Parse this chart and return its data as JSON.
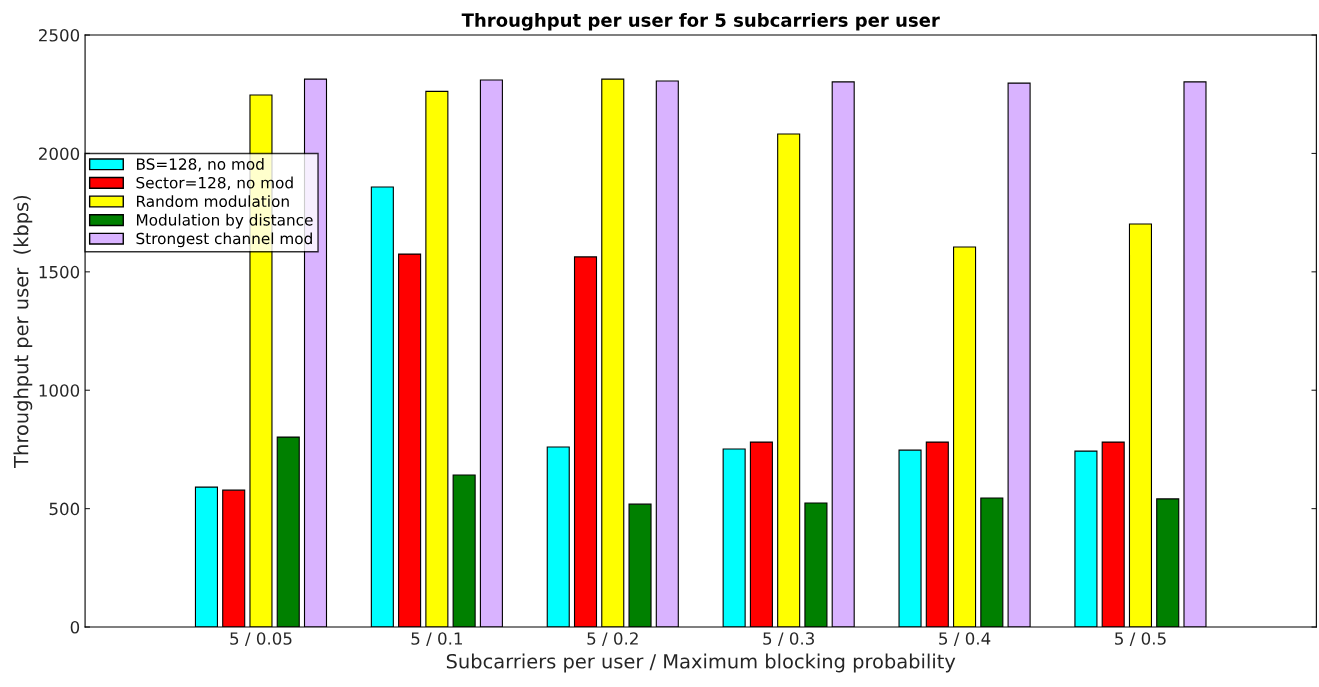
{
  "chart_data": {
    "type": "bar",
    "title": "Throughput per user for 5 subcarriers per user",
    "xlabel": "Subcarriers per user / Maximum blocking probability",
    "ylabel": "Throughput per user  (kbps)",
    "categories": [
      "5 / 0.05",
      "5 / 0.1",
      "5 / 0.2",
      "5 / 0.3",
      "5 / 0.4",
      "5 / 0.5"
    ],
    "series": [
      {
        "name": "BS=128, no mod",
        "color": "#00ffff",
        "values": [
          591,
          1858,
          760,
          752,
          747,
          743
        ]
      },
      {
        "name": "Sector=128, no mod",
        "color": "#ff0000",
        "values": [
          578,
          1575,
          1563,
          781,
          781,
          781
        ]
      },
      {
        "name": "Random modulation",
        "color": "#ffff00",
        "values": [
          2247,
          2262,
          2314,
          2082,
          1605,
          1702
        ]
      },
      {
        "name": "Modulation by distance",
        "color": "#008000",
        "values": [
          802,
          642,
          519,
          524,
          545,
          541
        ]
      },
      {
        "name": "Strongest channel mod",
        "color": "#d9b3ff",
        "values": [
          2314,
          2310,
          2306,
          2302,
          2297,
          2302
        ]
      }
    ],
    "ylim": [
      0,
      2500
    ],
    "yticks": [
      0,
      500,
      1000,
      1500,
      2000,
      2500
    ],
    "grid": false,
    "legend": "upper left"
  }
}
